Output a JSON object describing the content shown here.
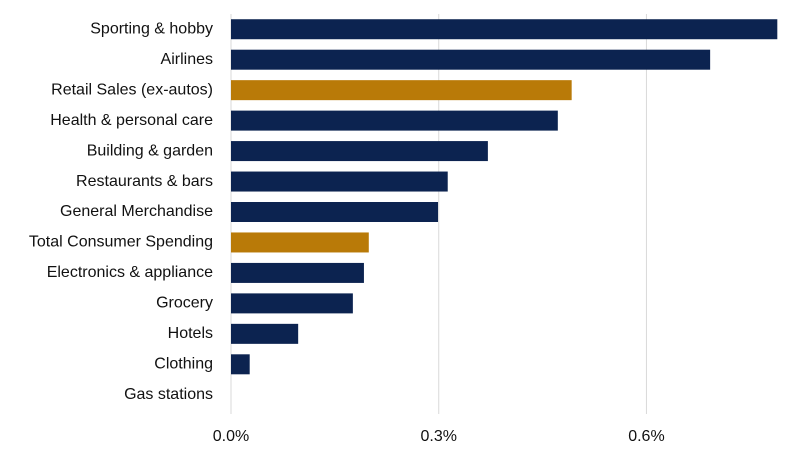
{
  "chart_data": {
    "type": "hbar",
    "categories": [
      "Sporting & hobby",
      "Airlines",
      "Retail Sales (ex-autos)",
      "Health & personal care",
      "Building & garden",
      "Restaurants & bars",
      "General Merchandise",
      "Total Consumer Spending",
      "Electronics & appliance",
      "Grocery",
      "Hotels",
      "Clothing",
      "Gas stations"
    ],
    "values": [
      0.789,
      0.692,
      0.492,
      0.472,
      0.371,
      0.313,
      0.299,
      0.199,
      0.192,
      0.176,
      0.097,
      0.027,
      0
    ],
    "colors": [
      "#0c2350",
      "#0c2350",
      "#b97a08",
      "#0c2350",
      "#0c2350",
      "#0c2350",
      "#0c2350",
      "#b97a08",
      "#0c2350",
      "#0c2350",
      "#0c2350",
      "#0c2350",
      "#0c2350"
    ],
    "xlim": [
      0,
      0.79
    ],
    "xticks": [
      {
        "value": 0,
        "label": "0.0%"
      },
      {
        "value": 0.3,
        "label": "0.3%"
      },
      {
        "value": 0.6,
        "label": "0.6%"
      }
    ],
    "grid": true
  }
}
